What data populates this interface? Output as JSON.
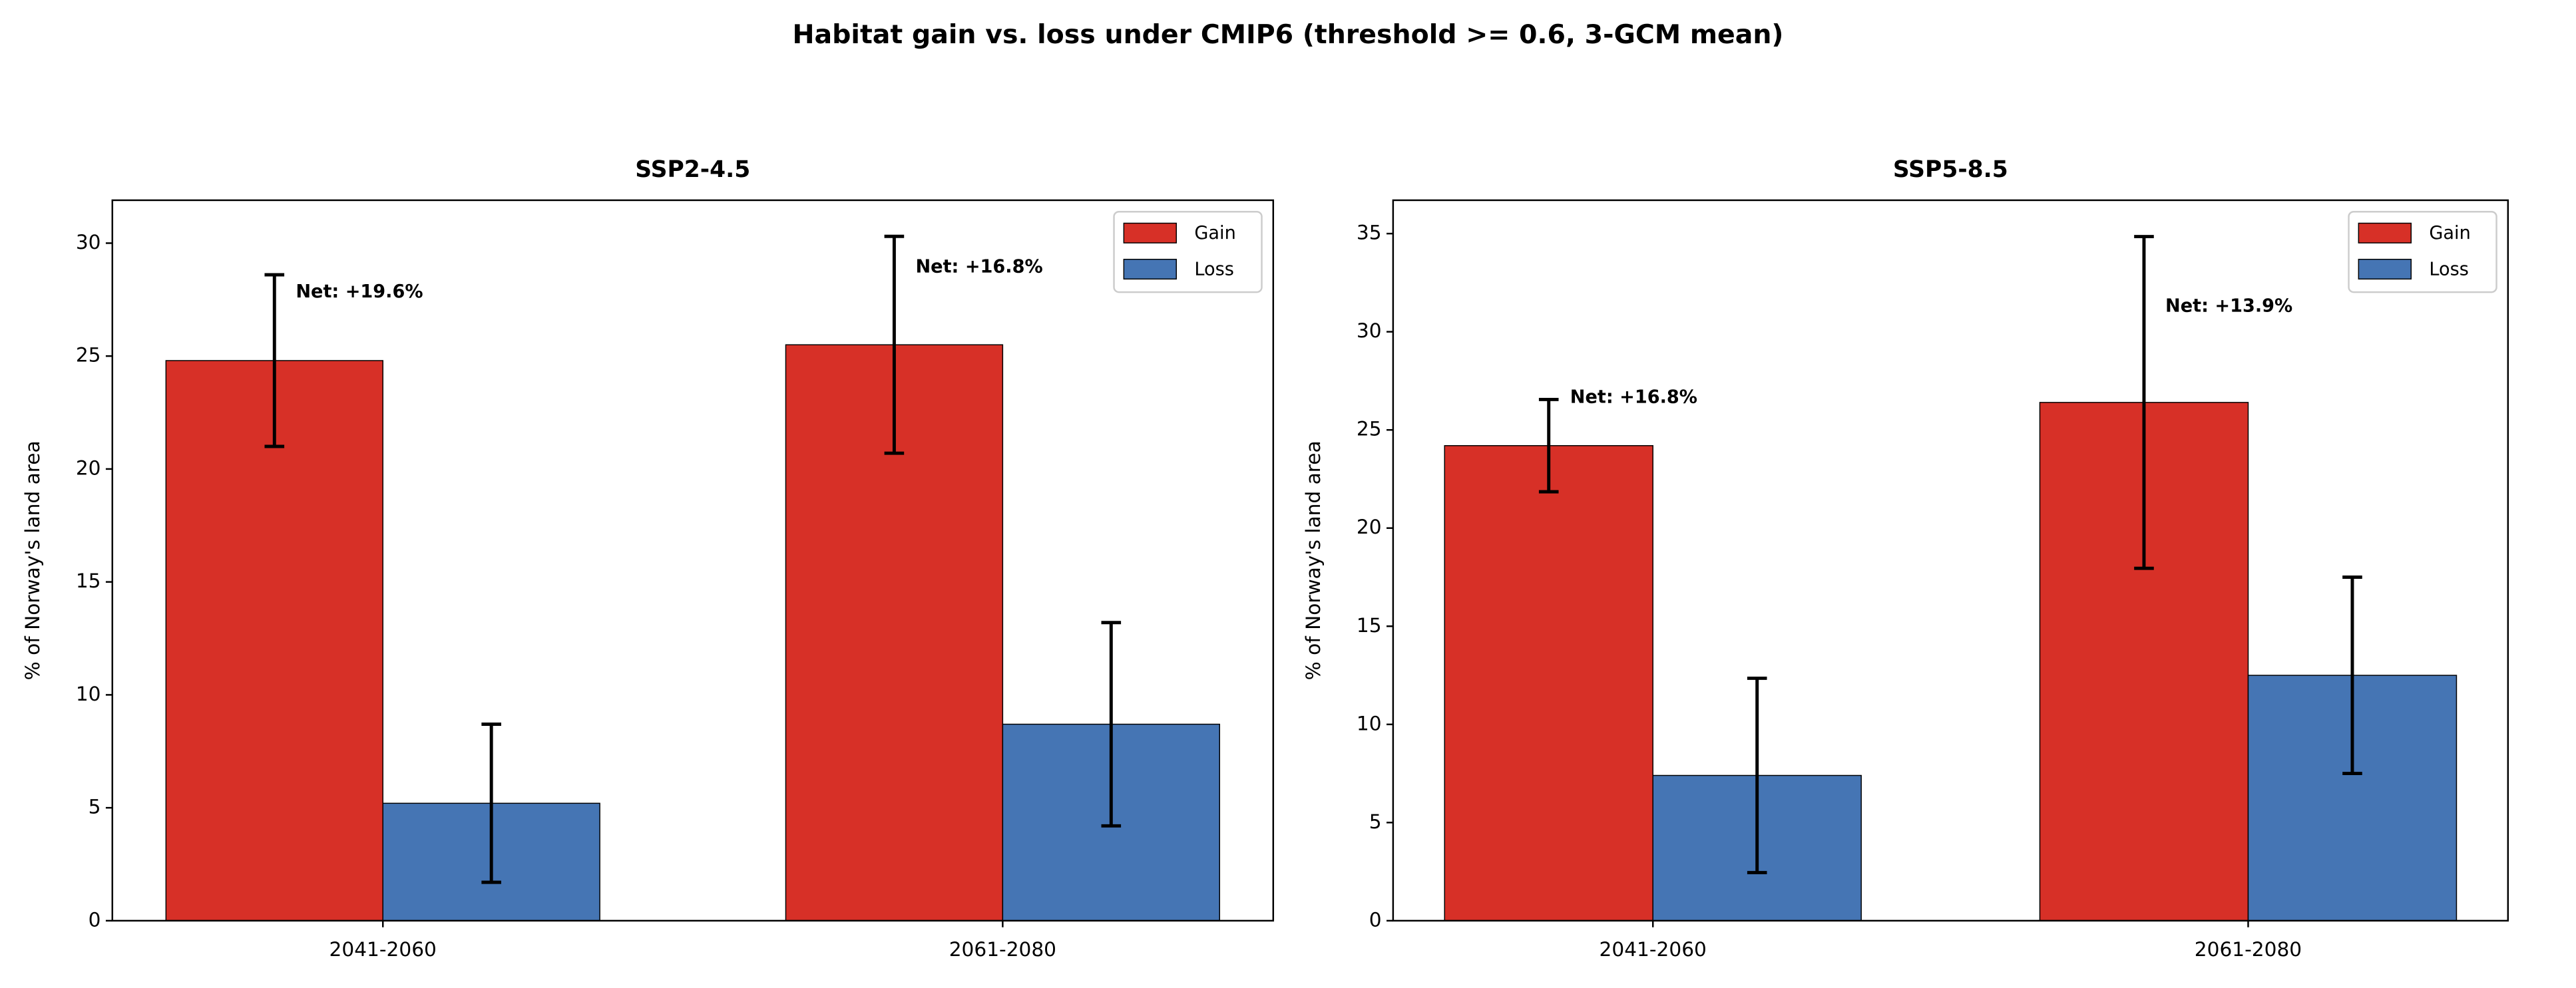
{
  "title": "Habitat gain vs. loss under CMIP6 (threshold >= 0.6, 3-GCM mean)",
  "chart_data": [
    {
      "type": "bar",
      "title": "SSP2-4.5",
      "ylabel": "% of Norway's land area",
      "categories": [
        "2041-2060",
        "2061-2080"
      ],
      "series": [
        {
          "name": "Gain",
          "color": "#d73027",
          "values": [
            24.8,
            25.5
          ],
          "errors": [
            3.8,
            4.8
          ]
        },
        {
          "name": "Loss",
          "color": "#4575b4",
          "values": [
            5.2,
            8.7
          ],
          "errors": [
            3.5,
            4.5
          ]
        }
      ],
      "annotations": [
        "Net: +19.6%",
        "Net: +16.8%"
      ],
      "ylim": [
        0,
        31.9
      ],
      "yticks": [
        0,
        5,
        10,
        15,
        20,
        25,
        30
      ],
      "grid": false,
      "legend": "upper right"
    },
    {
      "type": "bar",
      "title": "SSP5-8.5",
      "ylabel": "% of Norway's land area",
      "categories": [
        "2041-2060",
        "2061-2080"
      ],
      "series": [
        {
          "name": "Gain",
          "color": "#d73027",
          "values": [
            24.2,
            26.4
          ],
          "errors": [
            2.35,
            8.45
          ]
        },
        {
          "name": "Loss",
          "color": "#4575b4",
          "values": [
            7.4,
            12.5
          ],
          "errors": [
            4.95,
            5.0
          ]
        }
      ],
      "annotations": [
        "Net: +16.8%",
        "Net: +13.9%"
      ],
      "ylim": [
        0,
        36.7
      ],
      "yticks": [
        0,
        5,
        10,
        15,
        20,
        25,
        30,
        35
      ],
      "grid": false,
      "legend": "upper right"
    }
  ]
}
